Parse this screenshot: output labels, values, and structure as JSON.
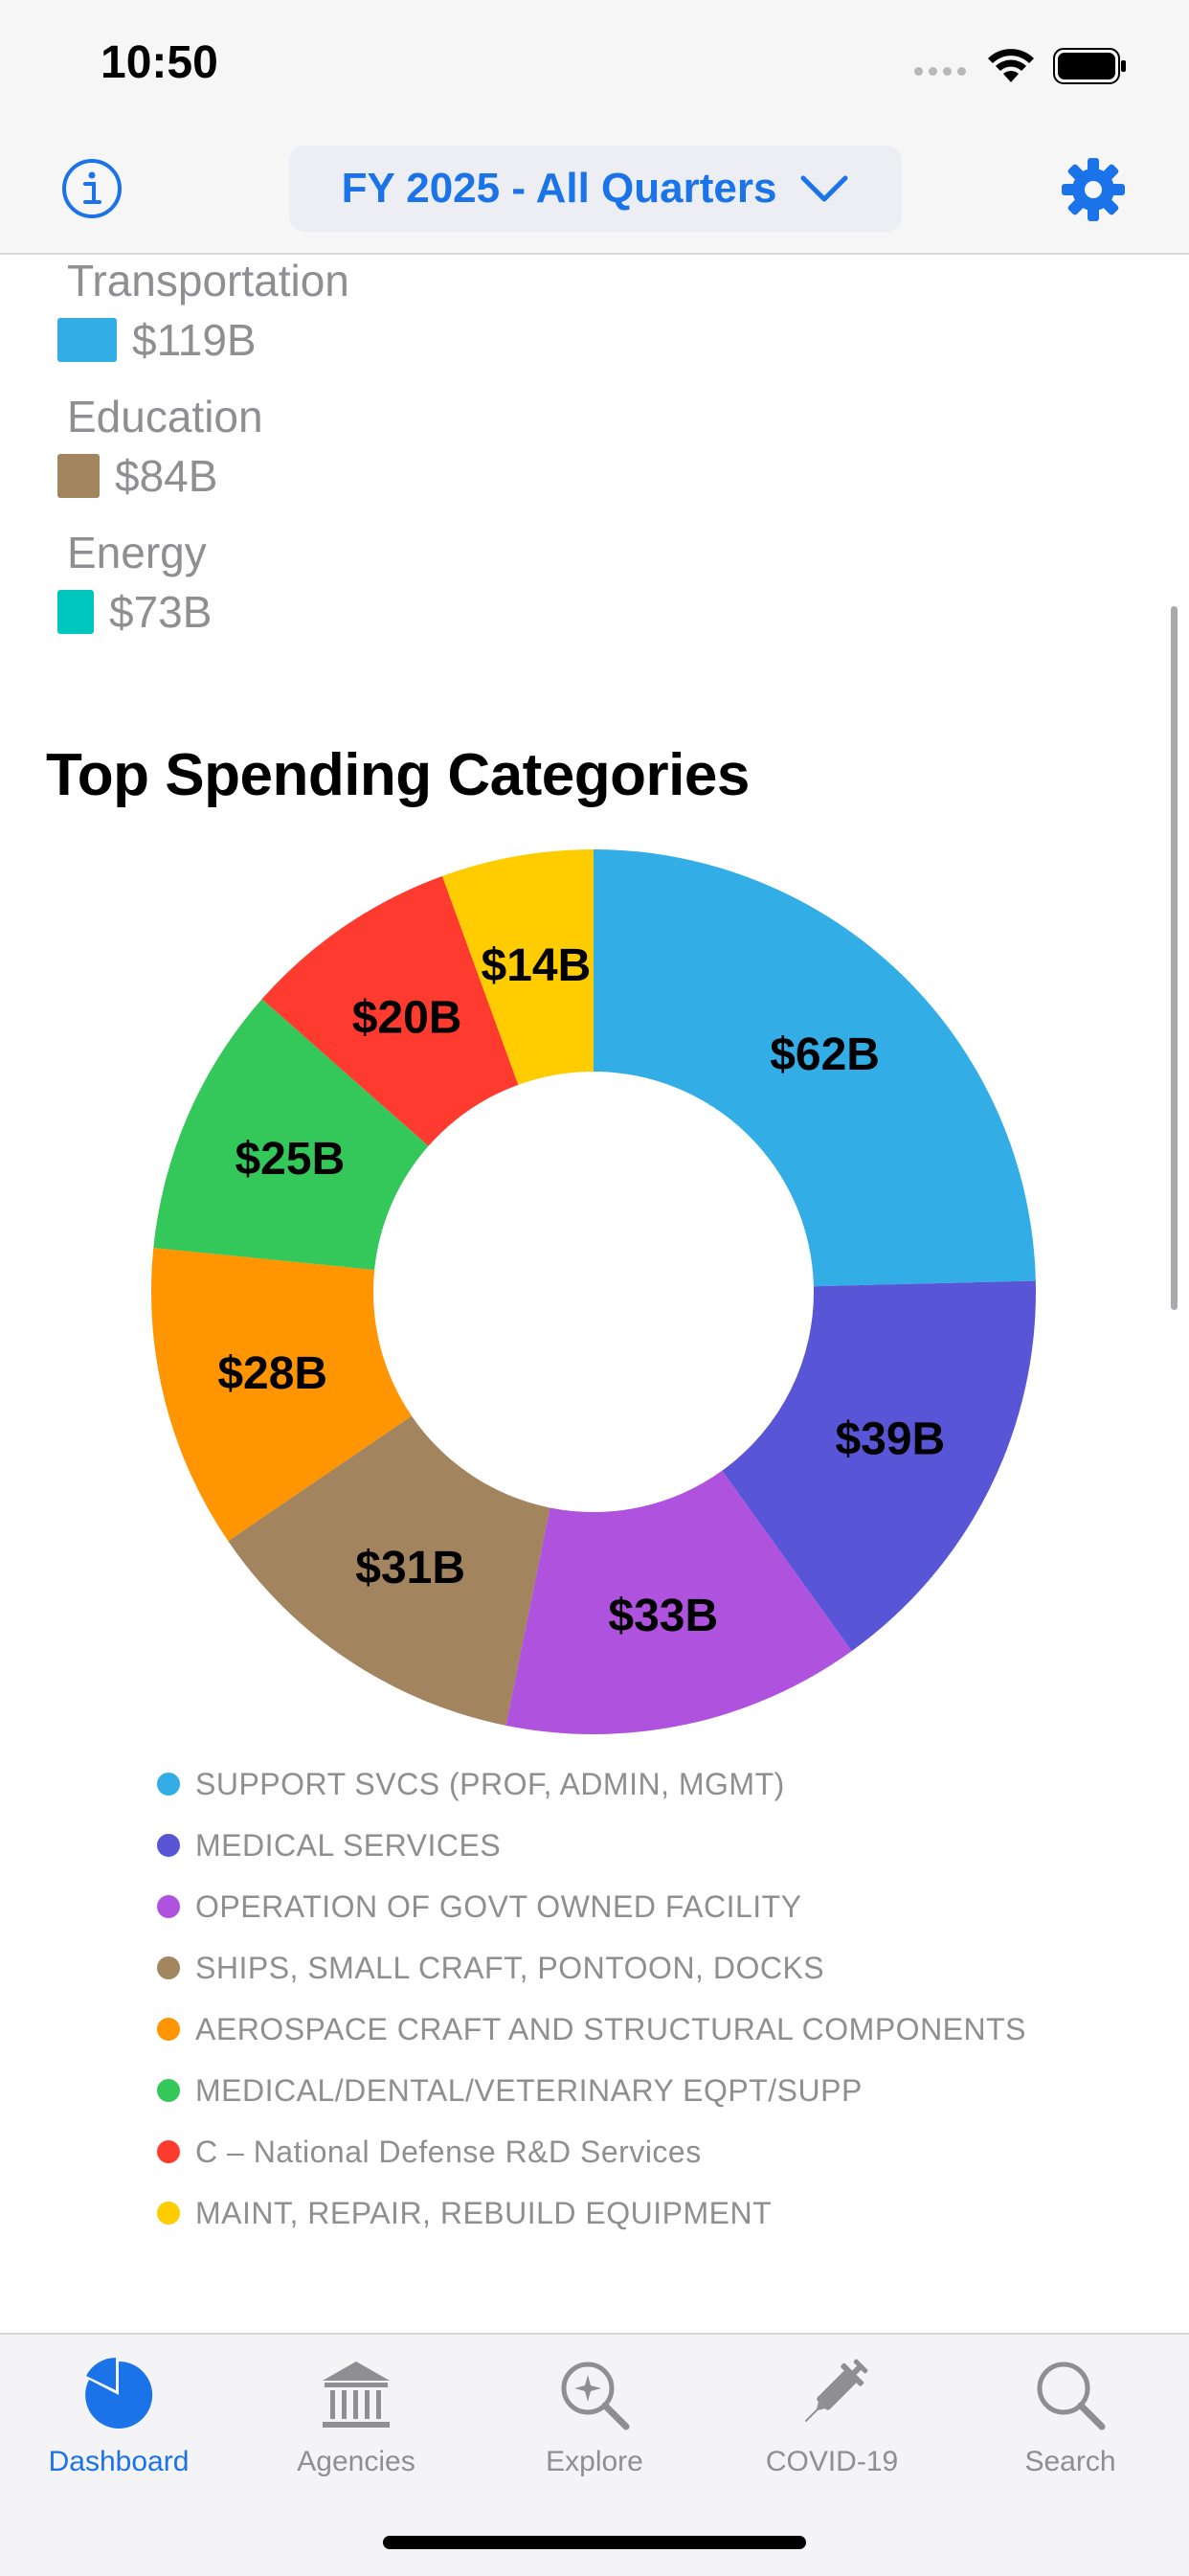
{
  "status_bar": {
    "time": "10:50"
  },
  "nav": {
    "fiscal_selector": "FY 2025 - All Quarters"
  },
  "agency_legend": [
    {
      "name": "Transportation",
      "amount": "$119B",
      "color": "#32ade6"
    },
    {
      "name": "Education",
      "amount": "$84B",
      "color": "#a2845e"
    },
    {
      "name": "Energy",
      "amount": "$73B",
      "color": "#00c7be"
    }
  ],
  "section": {
    "title": "Top Spending Categories"
  },
  "chart_data": {
    "type": "pie",
    "title": "Top Spending Categories",
    "categories": [
      "SUPPORT SVCS (PROF, ADMIN, MGMT)",
      "MEDICAL SERVICES",
      "OPERATION OF GOVT OWNED FACILITY",
      "SHIPS, SMALL CRAFT, PONTOON, DOCKS",
      "AEROSPACE CRAFT AND STRUCTURAL COMPONENTS",
      "MEDICAL/DENTAL/VETERINARY EQPT/SUPP",
      "C – National Defense R&D Services",
      "MAINT, REPAIR, REBUILD EQUIPMENT"
    ],
    "values": [
      62,
      39,
      33,
      31,
      28,
      25,
      20,
      14
    ],
    "value_labels": [
      "$62B",
      "$39B",
      "$33B",
      "$31B",
      "$28B",
      "$25B",
      "$20B",
      "$14B"
    ],
    "unit": "B",
    "colors": [
      "#32ade6",
      "#5856d6",
      "#af52de",
      "#a2845e",
      "#ff9500",
      "#34c759",
      "#ff3b30",
      "#ffcc00"
    ],
    "donut": true,
    "legend_position": "bottom"
  },
  "tab_bar": {
    "tabs": [
      {
        "label": "Dashboard",
        "icon": "pie-chart-icon",
        "active": true
      },
      {
        "label": "Agencies",
        "icon": "building-columns-icon",
        "active": false
      },
      {
        "label": "Explore",
        "icon": "magnifier-sparkle-icon",
        "active": false
      },
      {
        "label": "COVID-19",
        "icon": "syringe-icon",
        "active": false
      },
      {
        "label": "Search",
        "icon": "search-icon",
        "active": false
      }
    ]
  },
  "colors": {
    "accent": "#1a73e8"
  }
}
